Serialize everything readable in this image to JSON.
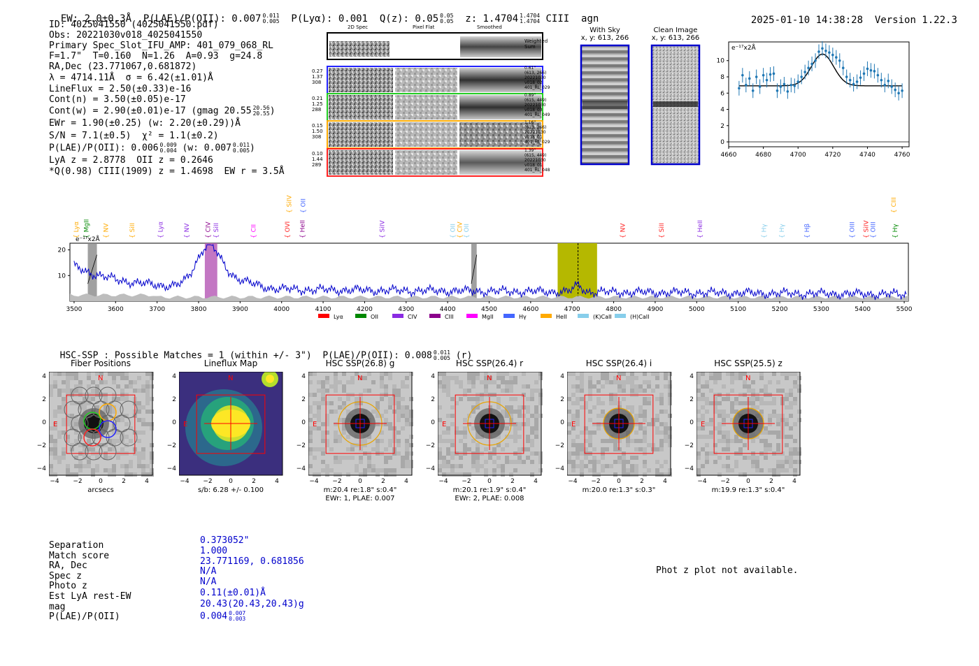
{
  "header": {
    "ew": "EW: 2.0±0.3Å",
    "plae_label": "P(LAE)/P(OII): 0.007",
    "plae_hi": "0.011",
    "plae_lo": "0.005",
    "plya": "P(Lyα): 0.001",
    "qz_label": "Q(z): 0.05",
    "qz_hi": "0.05",
    "qz_lo": "0.05",
    "z_label": "z: 1.4704",
    "z_hi": "1.4704",
    "z_lo": "1.4704",
    "line": "CIII",
    "cls": "agn",
    "timestamp": "2025-01-10 14:38:28",
    "version": "Version 1.22.3"
  },
  "info": {
    "id": "ID: 4025041550 (4025041550.pdf)",
    "obs": "Obs: 20221030v018_4025041550",
    "primary": "Primary Spec_Slot_IFU_AMP: 401_079_068_RL",
    "params": "F=1.7\"  T=0.160  N=1.26  A=0.93  g=24.8",
    "radec": "RA,Dec (23.771067,0.681872)",
    "lambda": "λ = 4714.11Å  σ = 6.42(±1.01)Å",
    "lineflux": "LineFlux = 2.50(±0.33)e-16",
    "contn": "Cont(n) = 3.50(±0.05)e-17",
    "contw_label": "Cont(w) = 2.90(±0.01)e-17 (gmag 20.55",
    "contw_hi": "20.56",
    "contw_lo": "20.55",
    "ewr": "EWr = 1.90(±0.25) (w: 2.20(±0.29))Å",
    "sn": "S/N = 7.1(±0.5)  χ² = 1.1(±0.2)",
    "plae_label": "P(LAE)/P(OII): 0.006",
    "plae_hi": "0.009",
    "plae_lo": "0.004",
    "plae_w_label": "(w: 0.007",
    "plae_w_hi": "0.011",
    "plae_w_lo": "0.005",
    "lya_z": "LyA z = 2.8778  OII z = 0.2646",
    "q_ciii": "*Q(0.98) CIII(1909) z = 1.4698  EW r = 3.5Å"
  },
  "cutouts": {
    "col_2d": "2D Spec",
    "col_flat": "Pixel Flat",
    "col_smooth": "Smoothed",
    "weighted": "Weighted\nSum",
    "rows": [
      {
        "left": "0.27\n1.37\n308",
        "right": "0.61\"\n(613, 266)\n20221030\nv018_02\n401_RL_029",
        "color": "#2222ff"
      },
      {
        "left": "0.21\n1.25\n288",
        "right": "0.89\"\n(615, 449)\n20221030\nv018_03\n401_RL_049",
        "color": "#22cc22"
      },
      {
        "left": "0.15\n1.50\n308",
        "right": "1.16\"\n(613, 266)\n20221030\nv018_01\n401_RL_029",
        "color": "#ffaa00"
      },
      {
        "left": "0.10\n1.44\n289",
        "right": "1.39\"\n(615, 449)\n20221030\nv018_01\n401_RL_048",
        "color": "#ff2222"
      }
    ]
  },
  "sky": {
    "with_sky_title": "With Sky",
    "with_sky_xy": "x, y: 613, 266",
    "clean_title": "Clean Image",
    "clean_xy": "x, y: 613, 266"
  },
  "chart_data": [
    {
      "type": "scatter",
      "title": "Emission line fit",
      "ylabel": "e⁻¹⁷x2Å",
      "xlim": [
        4660,
        4764
      ],
      "ylim": [
        -0.6,
        12.3
      ],
      "xticks": [
        4660,
        4680,
        4700,
        4720,
        4740,
        4760
      ],
      "yticks": [
        0,
        2,
        4,
        6,
        8,
        10
      ],
      "x": [
        4666,
        4668,
        4670,
        4672,
        4674,
        4676,
        4678,
        4680,
        4682,
        4684,
        4686,
        4688,
        4690,
        4692,
        4694,
        4696,
        4698,
        4700,
        4702,
        4704,
        4706,
        4708,
        4710,
        4712,
        4714,
        4716,
        4718,
        4720,
        4722,
        4724,
        4726,
        4728,
        4730,
        4732,
        4734,
        4736,
        4738,
        4740,
        4742,
        4744,
        4746,
        4748,
        4750,
        4752,
        4754,
        4756,
        4758,
        4760
      ],
      "y": [
        6.6,
        8.2,
        7.0,
        7.8,
        6.3,
        8.0,
        6.8,
        8.2,
        7.6,
        8.3,
        8.4,
        6.3,
        6.8,
        7.1,
        6.2,
        7.0,
        6.9,
        7.4,
        8.0,
        8.6,
        9.1,
        9.6,
        10.0,
        11.1,
        11.5,
        11.2,
        11.0,
        10.7,
        10.4,
        10.0,
        9.1,
        8.0,
        7.6,
        7.1,
        7.4,
        7.9,
        8.4,
        9.0,
        8.8,
        8.7,
        8.2,
        7.6,
        7.0,
        7.5,
        6.8,
        6.4,
        6.0,
        6.3
      ],
      "fit": {
        "continuum": 6.9,
        "amplitude": 3.9,
        "center": 4714.11,
        "sigma": 6.42
      }
    },
    {
      "type": "line",
      "title": "Full spectrum",
      "ylabel": "e⁻¹⁷x2Å",
      "xlim": [
        3490,
        5510
      ],
      "ylim": [
        0,
        22.6
      ],
      "xticks": [
        3500,
        3600,
        3700,
        3800,
        3900,
        4000,
        4100,
        4200,
        4300,
        4400,
        4500,
        4600,
        4700,
        4800,
        4900,
        5000,
        5100,
        5200,
        5300,
        5400,
        5500
      ],
      "yticks": [
        10,
        20
      ],
      "highlight_band": [
        4665,
        4760
      ],
      "fit_line": 4714.11,
      "masked_regions": [
        [
          3533,
          3555
        ],
        [
          3815,
          3845
        ],
        [
          4457,
          4470
        ]
      ],
      "line_labels": [
        {
          "name": "Lyα",
          "x": 3505,
          "row": "low",
          "color": "#ffaa00"
        },
        {
          "name": "MgII",
          "x": 3530,
          "row": "low",
          "color": "#008800"
        },
        {
          "name": "NV",
          "x": 3577,
          "row": "low",
          "color": "#ffaa00"
        },
        {
          "name": "SiII",
          "x": 3640,
          "row": "low",
          "color": "#ffaa00"
        },
        {
          "name": "Lyα",
          "x": 3708,
          "row": "low",
          "color": "#8a2be2"
        },
        {
          "name": "NV",
          "x": 3771,
          "row": "low",
          "color": "#8a2be2"
        },
        {
          "name": "CIV",
          "x": 3823,
          "row": "low",
          "color": "#8b008b"
        },
        {
          "name": "SiII",
          "x": 3842,
          "row": "low",
          "color": "#8a2be2"
        },
        {
          "name": "CII",
          "x": 3932,
          "row": "low",
          "color": "#ff00ff"
        },
        {
          "name": "OVI",
          "x": 4014,
          "row": "low",
          "color": "#ff2222"
        },
        {
          "name": "SiIV",
          "x": 4018,
          "row": "high",
          "color": "#ffaa00"
        },
        {
          "name": "HeII",
          "x": 4050,
          "row": "low",
          "color": "#8b008b"
        },
        {
          "name": "OII",
          "x": 4052,
          "row": "high",
          "color": "#4466ff"
        },
        {
          "name": "SiIV",
          "x": 4242,
          "row": "low",
          "color": "#8a2be2"
        },
        {
          "name": "OII",
          "x": 4412,
          "row": "low",
          "color": "#87ceeb"
        },
        {
          "name": "CIV",
          "x": 4429,
          "row": "low",
          "color": "#ffaa00"
        },
        {
          "name": "OII",
          "x": 4445,
          "row": "low",
          "color": "#87ceeb"
        },
        {
          "name": "NV",
          "x": 4822,
          "row": "low",
          "color": "#ff2222"
        },
        {
          "name": "SiII",
          "x": 4915,
          "row": "low",
          "color": "#ff2222"
        },
        {
          "name": "HeII",
          "x": 5008,
          "row": "low",
          "color": "#8a2be2"
        },
        {
          "name": "Hγ",
          "x": 5162,
          "row": "low",
          "color": "#87ceeb"
        },
        {
          "name": "Hγ",
          "x": 5205,
          "row": "low",
          "color": "#87ceeb"
        },
        {
          "name": "Hβ",
          "x": 5266,
          "row": "low",
          "color": "#4466ff"
        },
        {
          "name": "OIII",
          "x": 5374,
          "row": "low",
          "color": "#4466ff"
        },
        {
          "name": "SiIV",
          "x": 5408,
          "row": "low",
          "color": "#ff2222"
        },
        {
          "name": "OIII",
          "x": 5425,
          "row": "low",
          "color": "#4466ff"
        },
        {
          "name": "CIII",
          "x": 5475,
          "row": "high",
          "color": "#ffaa00"
        },
        {
          "name": "Hγ",
          "x": 5478,
          "row": "low",
          "color": "#008800"
        }
      ],
      "legend": [
        {
          "name": "Lyα",
          "color": "#ff0000"
        },
        {
          "name": "OII",
          "color": "#008800"
        },
        {
          "name": "CIV",
          "color": "#8a2be2"
        },
        {
          "name": "CIII",
          "color": "#8b008b"
        },
        {
          "name": "MgII",
          "color": "#ff00ff"
        },
        {
          "name": "Hγ",
          "color": "#4466ff"
        },
        {
          "name": "HeII",
          "color": "#ffaa00"
        },
        {
          "name": "(K)CaII",
          "color": "#87ceeb"
        },
        {
          "name": "(H)CaII",
          "color": "#87ceeb"
        }
      ]
    }
  ],
  "hsc": {
    "header_label": "HSC-SSP : Possible Matches = 1 (within +/- 3\")  P(LAE)/P(OII): 0.008",
    "header_hi": "0.011",
    "header_lo": "0.005",
    "header_band": "(r)",
    "compass_n": "N",
    "compass_e": "E",
    "ticks": [
      "−4",
      "−2",
      "0",
      "2",
      "4"
    ],
    "panels": [
      {
        "title": "Fiber Positions",
        "caption1": "arcsecs",
        "caption2": ""
      },
      {
        "title": "Lineflux Map",
        "caption1": "s/b: 6.28 +/- 0.100",
        "caption2": ""
      },
      {
        "title": "HSC SSP(26.8) g",
        "caption1": "m:20.4  re:1.8\"  s:0.4\"",
        "caption2": "EWr: 1, PLAE: 0.007"
      },
      {
        "title": "HSC SSP(26.4) r",
        "caption1": "m:20.1  re:1.9\"  s:0.4\"",
        "caption2": "EWr: 2, PLAE: 0.008"
      },
      {
        "title": "HSC SSP(26.4) i",
        "caption1": "m:20.0  re:1.3\"  s:0.3\"",
        "caption2": ""
      },
      {
        "title": "HSC SSP(25.5) z",
        "caption1": "m:19.9  re:1.3\"  s:0.4\"",
        "caption2": ""
      }
    ]
  },
  "match": {
    "labels": [
      "Separation",
      "Match score",
      "RA, Dec",
      "Spec z",
      "Photo z",
      "Est LyA rest-EW",
      "mag",
      "P(LAE)/P(OII)"
    ],
    "values": [
      "0.373052\"",
      "1.000",
      "23.771169, 0.681856",
      "N/A",
      "N/A",
      "0.11(±0.01)Å",
      "20.43(20.43,20.43)g",
      "0.004"
    ],
    "plae_hi": "0.007",
    "plae_lo": "0.003"
  },
  "photz_msg": "Phot z plot not available."
}
